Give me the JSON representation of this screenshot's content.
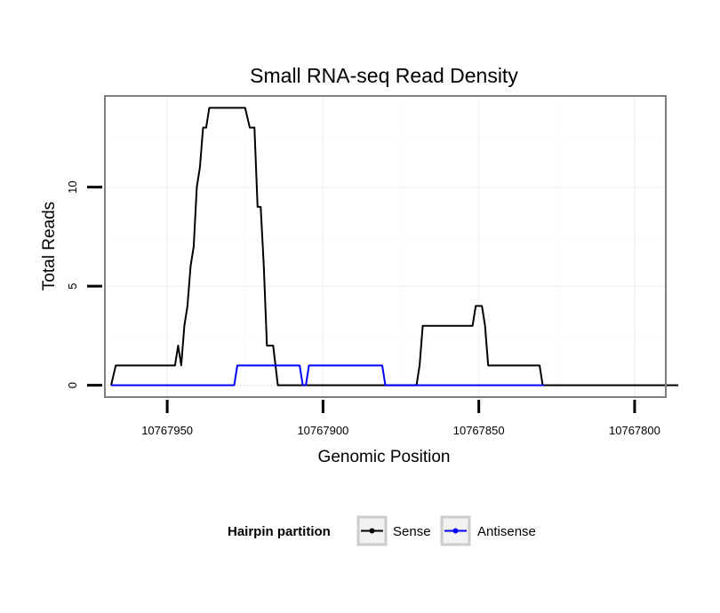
{
  "chart_data": {
    "type": "line",
    "title": "Small RNA-seq Read Density",
    "xlabel": "Genomic Position",
    "ylabel": "Total Reads",
    "x_reversed": true,
    "xlim": [
      10767970,
      10767790
    ],
    "ylim": [
      -0.6,
      14.6
    ],
    "x_ticks": [
      10767950,
      10767900,
      10767850,
      10767800
    ],
    "x_tick_labels": [
      "10767950",
      "10767900",
      "10767850",
      "10767800"
    ],
    "y_ticks": [
      0,
      5,
      10
    ],
    "y_tick_labels": [
      "0",
      "5",
      "10"
    ],
    "grid": true,
    "legend": {
      "title": "Hairpin partition",
      "placement": "bottom",
      "entries": [
        {
          "name": "Sense",
          "color": "#000000"
        },
        {
          "name": "Antisense",
          "color": "#0000ff"
        }
      ]
    },
    "series": [
      {
        "name": "Sense",
        "color": "#000000",
        "points": [
          [
            10767968,
            0
          ],
          [
            10767966.5,
            1
          ],
          [
            10767947.5,
            1
          ],
          [
            10767946.5,
            2
          ],
          [
            10767945.5,
            1
          ],
          [
            10767944.5,
            3
          ],
          [
            10767943.5,
            4
          ],
          [
            10767942.5,
            6
          ],
          [
            10767941.5,
            7
          ],
          [
            10767940.5,
            10
          ],
          [
            10767939.5,
            11
          ],
          [
            10767938.5,
            13
          ],
          [
            10767937.5,
            13
          ],
          [
            10767936.5,
            14
          ],
          [
            10767925,
            14
          ],
          [
            10767923.5,
            13
          ],
          [
            10767922,
            13
          ],
          [
            10767921,
            9
          ],
          [
            10767920,
            9
          ],
          [
            10767919,
            6
          ],
          [
            10767918,
            2
          ],
          [
            10767916,
            2
          ],
          [
            10767914.5,
            0
          ],
          [
            10767870,
            0
          ],
          [
            10767869,
            1
          ],
          [
            10767868,
            3
          ],
          [
            10767852,
            3
          ],
          [
            10767851,
            4
          ],
          [
            10767849,
            4
          ],
          [
            10767848,
            3
          ],
          [
            10767847,
            1
          ],
          [
            10767830.5,
            1
          ],
          [
            10767829.5,
            0
          ],
          [
            10767786,
            0
          ]
        ]
      },
      {
        "name": "Antisense",
        "color": "#0000ff",
        "points": [
          [
            10767968,
            0
          ],
          [
            10767928.5,
            0
          ],
          [
            10767927.5,
            1
          ],
          [
            10767907.5,
            1
          ],
          [
            10767906.5,
            0
          ],
          [
            10767905.5,
            0
          ],
          [
            10767904.5,
            1
          ],
          [
            10767881,
            1
          ],
          [
            10767880,
            0
          ],
          [
            10767829,
            0
          ]
        ]
      }
    ]
  }
}
